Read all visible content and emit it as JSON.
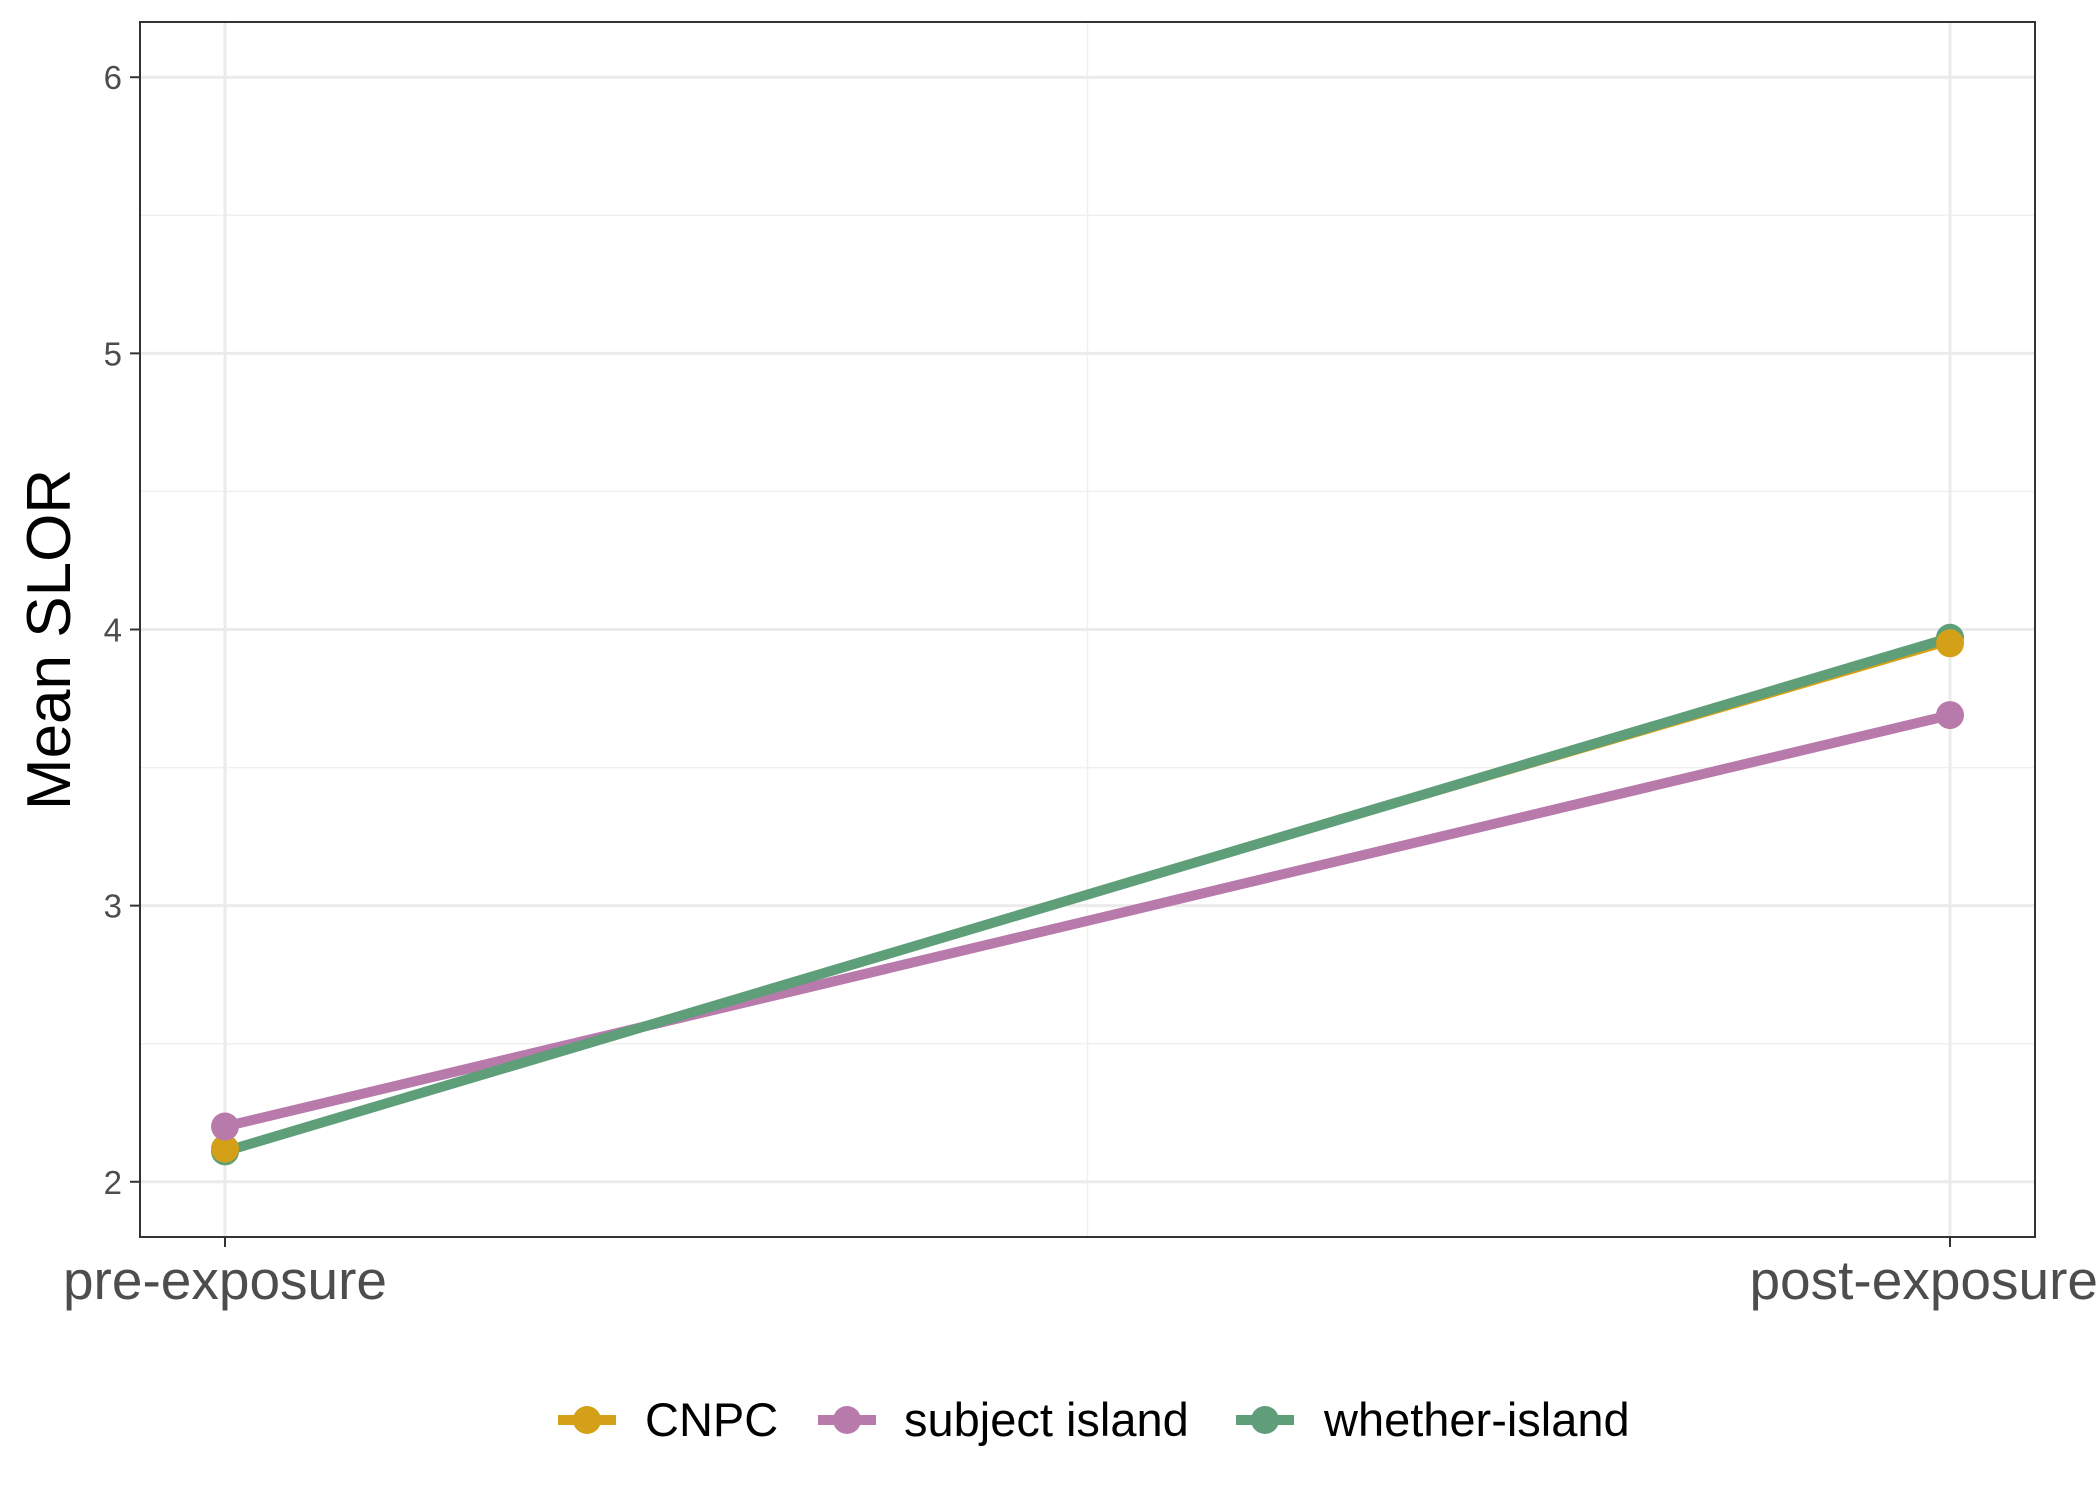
{
  "chart_data": {
    "type": "line",
    "title": "",
    "xlabel": "",
    "ylabel": "Mean SLOR",
    "categories": [
      "pre-exposure",
      "post-exposure"
    ],
    "ylim": [
      1.8,
      6.2
    ],
    "y_ticks": [
      2,
      3,
      4,
      5,
      6
    ],
    "grid": true,
    "legend_position": "bottom",
    "series": [
      {
        "name": "CNPC",
        "color": "#D4A017",
        "values": [
          2.12,
          3.95
        ]
      },
      {
        "name": "subject island",
        "color": "#B87AAB",
        "values": [
          2.2,
          3.69
        ]
      },
      {
        "name": "whether-island",
        "color": "#5E9E78",
        "values": [
          2.11,
          3.97
        ]
      }
    ]
  }
}
